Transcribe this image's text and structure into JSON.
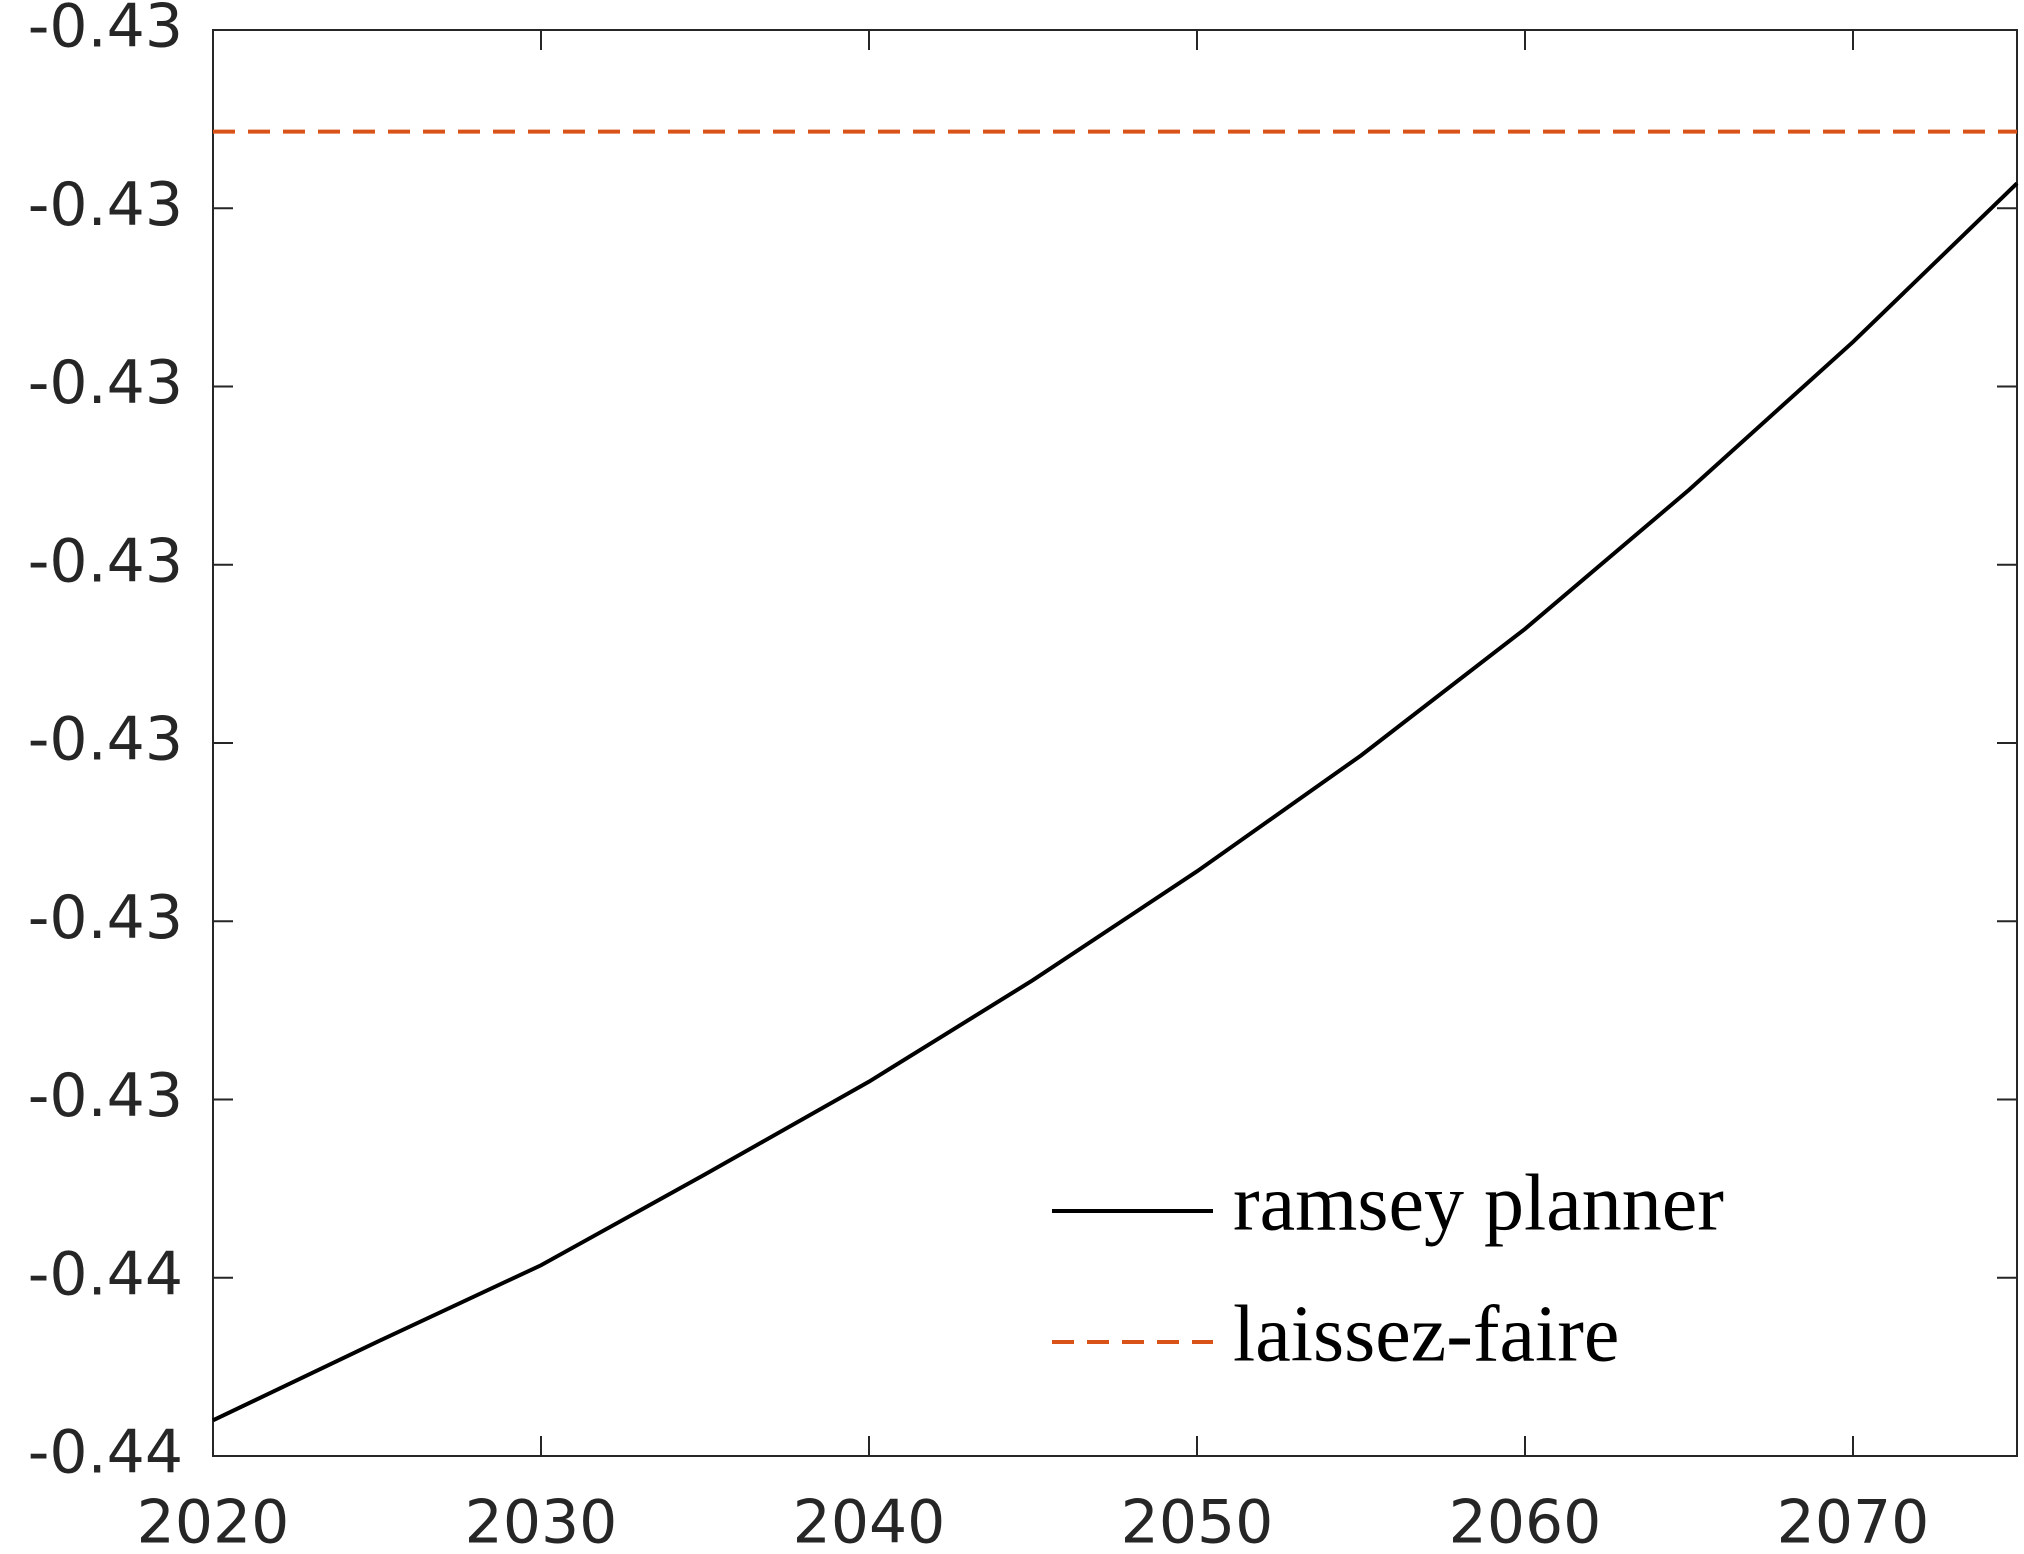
{
  "chart_data": {
    "type": "line",
    "x": [
      2020,
      2025,
      2030,
      2035,
      2040,
      2045,
      2050,
      2055,
      2060,
      2065,
      2070,
      2075
    ],
    "series": [
      {
        "name": "ramsey planner",
        "color": "#000000",
        "dash": false,
        "values": [
          -0.4363,
          -0.43586,
          -0.43543,
          -0.43492,
          -0.4344,
          -0.43383,
          -0.43322,
          -0.43257,
          -0.43186,
          -0.43108,
          -0.43025,
          -0.42936
        ]
      },
      {
        "name": "laissez-faire",
        "color": "#d95319",
        "dash": true,
        "values": [
          -0.42907,
          -0.42907,
          -0.42907,
          -0.42907,
          -0.42907,
          -0.42907,
          -0.42907,
          -0.42907,
          -0.42907,
          -0.42907,
          -0.42907,
          -0.42907
        ]
      }
    ],
    "xlim": [
      2020,
      2075
    ],
    "xticks": [
      2020,
      2030,
      2040,
      2050,
      2060,
      2070
    ],
    "ylim": [
      -0.4365,
      -0.4285
    ],
    "yticks": [
      {
        "value": -0.4365,
        "label": "-0.44"
      },
      {
        "value": -0.4355,
        "label": "-0.44"
      },
      {
        "value": -0.4345,
        "label": "-0.43"
      },
      {
        "value": -0.4335,
        "label": "-0.43"
      },
      {
        "value": -0.4325,
        "label": "-0.43"
      },
      {
        "value": -0.4315,
        "label": "-0.43"
      },
      {
        "value": -0.4305,
        "label": "-0.43"
      },
      {
        "value": -0.4295,
        "label": "-0.43"
      },
      {
        "value": -0.4285,
        "label": "-0.43"
      }
    ],
    "grid": false,
    "legend": "lower right"
  }
}
